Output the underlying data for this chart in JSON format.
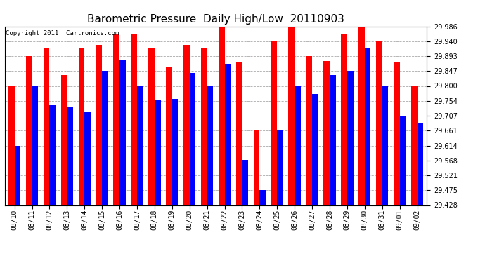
{
  "title": "Barometric Pressure  Daily High/Low  20110903",
  "copyright": "Copyright 2011  Cartronics.com",
  "categories": [
    "08/10",
    "08/11",
    "08/12",
    "08/13",
    "08/14",
    "08/15",
    "08/16",
    "08/17",
    "08/18",
    "08/19",
    "08/20",
    "08/21",
    "08/22",
    "08/23",
    "08/24",
    "08/25",
    "08/26",
    "08/27",
    "08/28",
    "08/29",
    "08/30",
    "08/31",
    "09/01",
    "09/02"
  ],
  "highs": [
    29.8,
    29.893,
    29.92,
    29.833,
    29.92,
    29.927,
    29.96,
    29.963,
    29.92,
    29.86,
    29.927,
    29.92,
    29.986,
    29.873,
    29.662,
    29.94,
    29.986,
    29.893,
    29.878,
    29.96,
    29.986,
    29.94,
    29.873,
    29.8
  ],
  "lows": [
    29.614,
    29.8,
    29.74,
    29.735,
    29.72,
    29.847,
    29.88,
    29.8,
    29.755,
    29.76,
    29.84,
    29.8,
    29.87,
    29.57,
    29.475,
    29.661,
    29.8,
    29.775,
    29.835,
    29.847,
    29.92,
    29.8,
    29.707,
    29.685
  ],
  "high_color": "#ff0000",
  "low_color": "#0000ff",
  "bg_color": "#ffffff",
  "grid_color": "#aaaaaa",
  "ymin": 29.428,
  "ymax": 29.986,
  "yticks": [
    29.428,
    29.475,
    29.521,
    29.568,
    29.614,
    29.661,
    29.707,
    29.754,
    29.8,
    29.847,
    29.893,
    29.94,
    29.986
  ],
  "title_fontsize": 11,
  "tick_fontsize": 7,
  "copyright_fontsize": 6.5,
  "bar_width": 0.35
}
